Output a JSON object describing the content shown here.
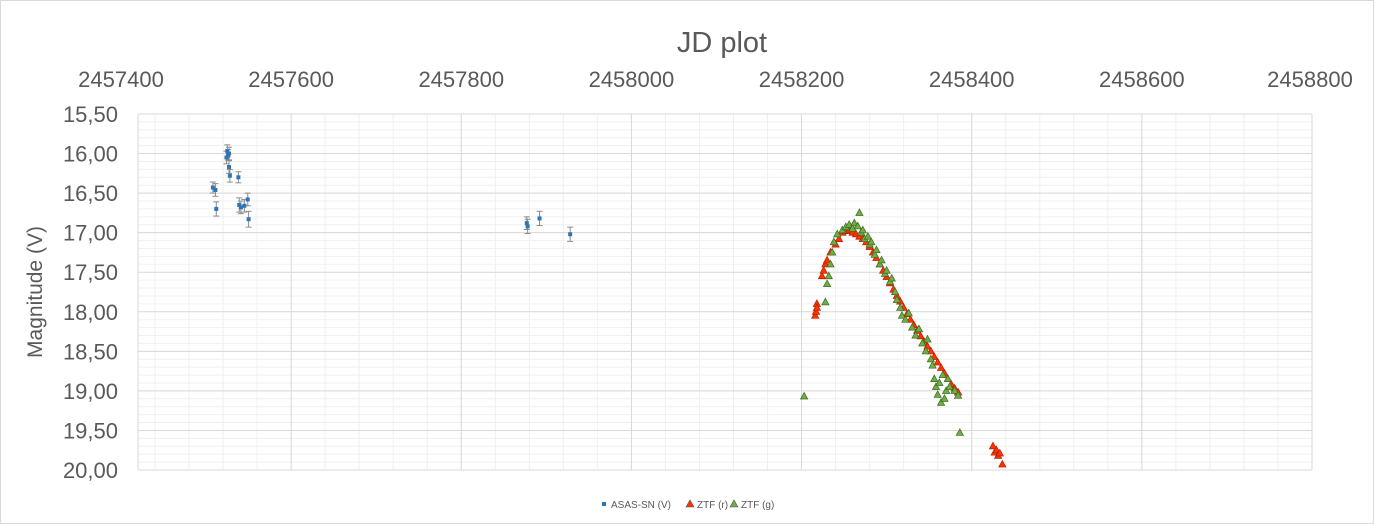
{
  "chart_data": {
    "type": "scatter",
    "title": "JD plot",
    "xlabel": "",
    "ylabel": "Magnitude (V)",
    "xlim": [
      2457420,
      2458800
    ],
    "ylim": [
      15.5,
      20.0
    ],
    "y_reversed": true,
    "x_axis_position": "top",
    "x_ticks": [
      "2457400",
      "2457600",
      "2457800",
      "2458000",
      "2458200",
      "2458400",
      "2458600",
      "2458800"
    ],
    "y_ticks": [
      "15,50",
      "16,00",
      "16,50",
      "17,00",
      "17,50",
      "18,00",
      "18,50",
      "19,00",
      "19,50",
      "20,00"
    ],
    "grid": true,
    "legend_position": "bottom",
    "series": [
      {
        "name": "ASAS-SN (V)",
        "color": "#2e75b6",
        "marker": "square",
        "error_bars": true,
        "points": [
          {
            "x": 2457508,
            "y": 16.43,
            "err": 0.07
          },
          {
            "x": 2457511,
            "y": 16.46,
            "err": 0.08
          },
          {
            "x": 2457512,
            "y": 16.7,
            "err": 0.09
          },
          {
            "x": 2457524,
            "y": 16.05,
            "err": 0.08
          },
          {
            "x": 2457525,
            "y": 15.97,
            "err": 0.08
          },
          {
            "x": 2457526,
            "y": 16.02,
            "err": 0.07
          },
          {
            "x": 2457527,
            "y": 16.0,
            "err": 0.08
          },
          {
            "x": 2457527,
            "y": 16.17,
            "err": 0.08
          },
          {
            "x": 2457528,
            "y": 16.28,
            "err": 0.08
          },
          {
            "x": 2457538,
            "y": 16.3,
            "err": 0.07
          },
          {
            "x": 2457539,
            "y": 16.65,
            "err": 0.09
          },
          {
            "x": 2457541,
            "y": 16.68,
            "err": 0.08
          },
          {
            "x": 2457545,
            "y": 16.66,
            "err": 0.08
          },
          {
            "x": 2457549,
            "y": 16.58,
            "err": 0.08
          },
          {
            "x": 2457550,
            "y": 16.83,
            "err": 0.1
          },
          {
            "x": 2457877,
            "y": 16.88,
            "err": 0.08
          },
          {
            "x": 2457878,
            "y": 16.92,
            "err": 0.09
          },
          {
            "x": 2457892,
            "y": 16.82,
            "err": 0.09
          },
          {
            "x": 2457928,
            "y": 17.02,
            "err": 0.09
          }
        ]
      },
      {
        "name": "ZTF (r)",
        "color": "#ff3300",
        "marker": "triangle",
        "points": [
          {
            "x": 2458216,
            "y": 18.05
          },
          {
            "x": 2458217,
            "y": 18.0
          },
          {
            "x": 2458218,
            "y": 17.9
          },
          {
            "x": 2458218,
            "y": 17.95
          },
          {
            "x": 2458224,
            "y": 17.55
          },
          {
            "x": 2458226,
            "y": 17.48
          },
          {
            "x": 2458228,
            "y": 17.4
          },
          {
            "x": 2458230,
            "y": 17.35
          },
          {
            "x": 2458234,
            "y": 17.25
          },
          {
            "x": 2458240,
            "y": 17.15
          },
          {
            "x": 2458244,
            "y": 17.08
          },
          {
            "x": 2458248,
            "y": 17.0
          },
          {
            "x": 2458252,
            "y": 16.98
          },
          {
            "x": 2458256,
            "y": 16.97
          },
          {
            "x": 2458260,
            "y": 17.0
          },
          {
            "x": 2458264,
            "y": 17.02
          },
          {
            "x": 2458268,
            "y": 17.05
          },
          {
            "x": 2458272,
            "y": 17.08
          },
          {
            "x": 2458276,
            "y": 17.12
          },
          {
            "x": 2458280,
            "y": 17.18
          },
          {
            "x": 2458284,
            "y": 17.25
          },
          {
            "x": 2458288,
            "y": 17.32
          },
          {
            "x": 2458292,
            "y": 17.4
          },
          {
            "x": 2458296,
            "y": 17.48
          },
          {
            "x": 2458300,
            "y": 17.56
          },
          {
            "x": 2458304,
            "y": 17.64
          },
          {
            "x": 2458308,
            "y": 17.72
          },
          {
            "x": 2458312,
            "y": 17.8
          },
          {
            "x": 2458316,
            "y": 17.87
          },
          {
            "x": 2458320,
            "y": 17.95
          },
          {
            "x": 2458324,
            "y": 18.03
          },
          {
            "x": 2458328,
            "y": 18.1
          },
          {
            "x": 2458332,
            "y": 18.17
          },
          {
            "x": 2458336,
            "y": 18.24
          },
          {
            "x": 2458340,
            "y": 18.31
          },
          {
            "x": 2458344,
            "y": 18.38
          },
          {
            "x": 2458348,
            "y": 18.44
          },
          {
            "x": 2458352,
            "y": 18.5
          },
          {
            "x": 2458356,
            "y": 18.57
          },
          {
            "x": 2458360,
            "y": 18.64
          },
          {
            "x": 2458364,
            "y": 18.71
          },
          {
            "x": 2458368,
            "y": 18.78
          },
          {
            "x": 2458372,
            "y": 18.85
          },
          {
            "x": 2458376,
            "y": 18.92
          },
          {
            "x": 2458380,
            "y": 18.97
          },
          {
            "x": 2458384,
            "y": 19.02
          },
          {
            "x": 2458425,
            "y": 19.7
          },
          {
            "x": 2458427,
            "y": 19.78
          },
          {
            "x": 2458429,
            "y": 19.75
          },
          {
            "x": 2458431,
            "y": 19.82
          },
          {
            "x": 2458433,
            "y": 19.79
          },
          {
            "x": 2458436,
            "y": 19.93
          }
        ]
      },
      {
        "name": "ZTF (g)",
        "color": "#70ad47",
        "marker": "triangle",
        "points": [
          {
            "x": 2458203,
            "y": 19.07
          },
          {
            "x": 2458228,
            "y": 17.88
          },
          {
            "x": 2458230,
            "y": 17.65
          },
          {
            "x": 2458232,
            "y": 17.55
          },
          {
            "x": 2458234,
            "y": 17.4
          },
          {
            "x": 2458236,
            "y": 17.25
          },
          {
            "x": 2458238,
            "y": 17.12
          },
          {
            "x": 2458242,
            "y": 17.02
          },
          {
            "x": 2458248,
            "y": 16.97
          },
          {
            "x": 2458252,
            "y": 16.93
          },
          {
            "x": 2458256,
            "y": 16.9
          },
          {
            "x": 2458260,
            "y": 16.95
          },
          {
            "x": 2458262,
            "y": 16.88
          },
          {
            "x": 2458266,
            "y": 16.92
          },
          {
            "x": 2458268,
            "y": 16.75
          },
          {
            "x": 2458270,
            "y": 17.0
          },
          {
            "x": 2458272,
            "y": 16.97
          },
          {
            "x": 2458274,
            "y": 17.08
          },
          {
            "x": 2458278,
            "y": 17.05
          },
          {
            "x": 2458280,
            "y": 17.15
          },
          {
            "x": 2458282,
            "y": 17.12
          },
          {
            "x": 2458286,
            "y": 17.28
          },
          {
            "x": 2458288,
            "y": 17.22
          },
          {
            "x": 2458292,
            "y": 17.4
          },
          {
            "x": 2458294,
            "y": 17.35
          },
          {
            "x": 2458298,
            "y": 17.52
          },
          {
            "x": 2458300,
            "y": 17.48
          },
          {
            "x": 2458304,
            "y": 17.62
          },
          {
            "x": 2458306,
            "y": 17.58
          },
          {
            "x": 2458310,
            "y": 17.75
          },
          {
            "x": 2458312,
            "y": 17.85
          },
          {
            "x": 2458316,
            "y": 17.95
          },
          {
            "x": 2458318,
            "y": 18.05
          },
          {
            "x": 2458322,
            "y": 18.1
          },
          {
            "x": 2458326,
            "y": 18.02
          },
          {
            "x": 2458330,
            "y": 18.2
          },
          {
            "x": 2458334,
            "y": 18.3
          },
          {
            "x": 2458338,
            "y": 18.22
          },
          {
            "x": 2458342,
            "y": 18.4
          },
          {
            "x": 2458346,
            "y": 18.5
          },
          {
            "x": 2458348,
            "y": 18.35
          },
          {
            "x": 2458352,
            "y": 18.6
          },
          {
            "x": 2458354,
            "y": 18.68
          },
          {
            "x": 2458356,
            "y": 18.85
          },
          {
            "x": 2458358,
            "y": 18.95
          },
          {
            "x": 2458360,
            "y": 19.05
          },
          {
            "x": 2458362,
            "y": 18.9
          },
          {
            "x": 2458364,
            "y": 19.15
          },
          {
            "x": 2458366,
            "y": 18.8
          },
          {
            "x": 2458368,
            "y": 19.1
          },
          {
            "x": 2458370,
            "y": 19.0
          },
          {
            "x": 2458372,
            "y": 18.85
          },
          {
            "x": 2458374,
            "y": 18.95
          },
          {
            "x": 2458380,
            "y": 19.0
          },
          {
            "x": 2458384,
            "y": 19.06
          },
          {
            "x": 2458386,
            "y": 19.53
          }
        ]
      }
    ]
  }
}
